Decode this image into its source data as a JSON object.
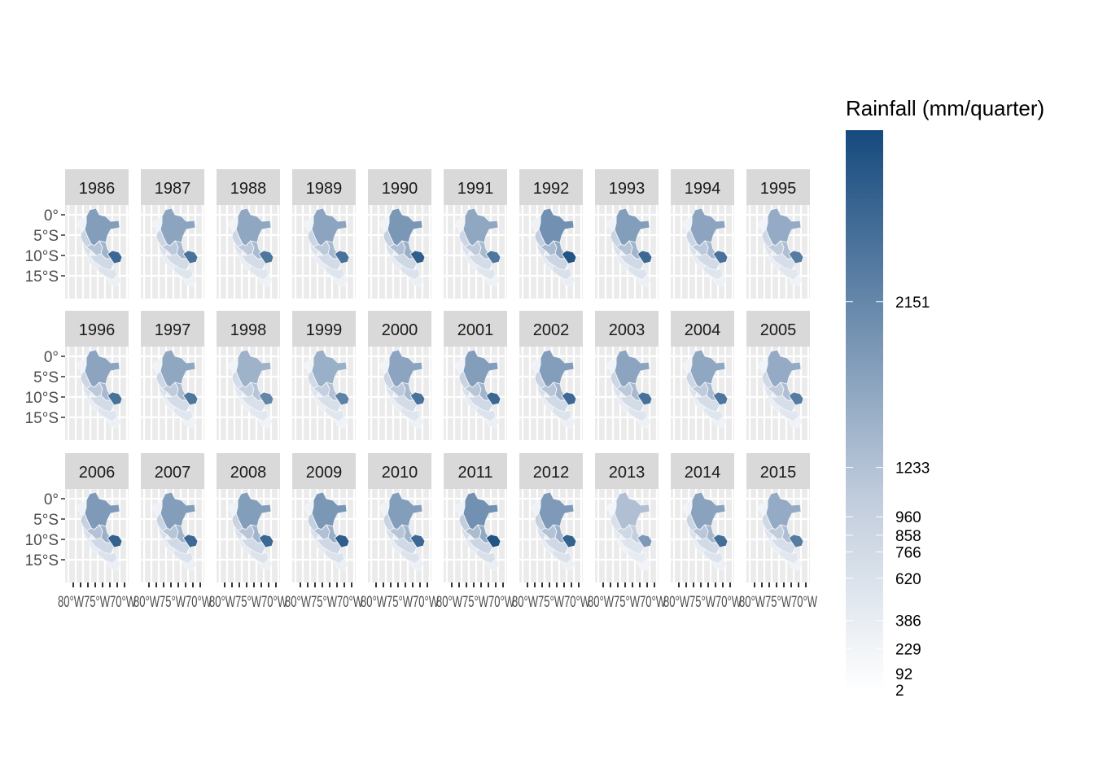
{
  "chart_data": {
    "type": "heatmap",
    "subtype": "faceted choropleth map",
    "facet_labels": [
      "1986",
      "1987",
      "1988",
      "1989",
      "1990",
      "1991",
      "1992",
      "1993",
      "1994",
      "1995",
      "1996",
      "1997",
      "1998",
      "1999",
      "2000",
      "2001",
      "2002",
      "2003",
      "2004",
      "2005",
      "2006",
      "2007",
      "2008",
      "2009",
      "2010",
      "2011",
      "2012",
      "2013",
      "2014",
      "2015"
    ],
    "facet_layout": {
      "rows": 3,
      "cols": 10
    },
    "y_ticks": [
      "0°",
      "5°S",
      "10°S",
      "15°S"
    ],
    "x_tick_text": "80°W75°W70°W",
    "legend": {
      "title": "Rainfall (mm/quarter)",
      "breaks": [
        "2151",
        "1233",
        "960",
        "858",
        "766",
        "620",
        "386",
        "229",
        "92",
        "2"
      ],
      "break_values": [
        2151,
        1233,
        960,
        858,
        766,
        620,
        386,
        229,
        92,
        2
      ],
      "range": [
        2,
        3100
      ],
      "low_color": "#ffffff",
      "high_color": "#154a7d"
    },
    "facet_intensity": {
      "description": "relative darkness of the darkest (south-east) region per year, 0-1",
      "values": [
        0.85,
        0.8,
        0.78,
        0.8,
        0.9,
        0.78,
        0.95,
        0.85,
        0.8,
        0.75,
        0.8,
        0.78,
        0.7,
        0.72,
        0.8,
        0.85,
        0.85,
        0.8,
        0.78,
        0.75,
        0.88,
        0.85,
        0.85,
        0.9,
        0.85,
        0.95,
        0.88,
        0.6,
        0.82,
        0.75
      ]
    },
    "grid": true
  }
}
